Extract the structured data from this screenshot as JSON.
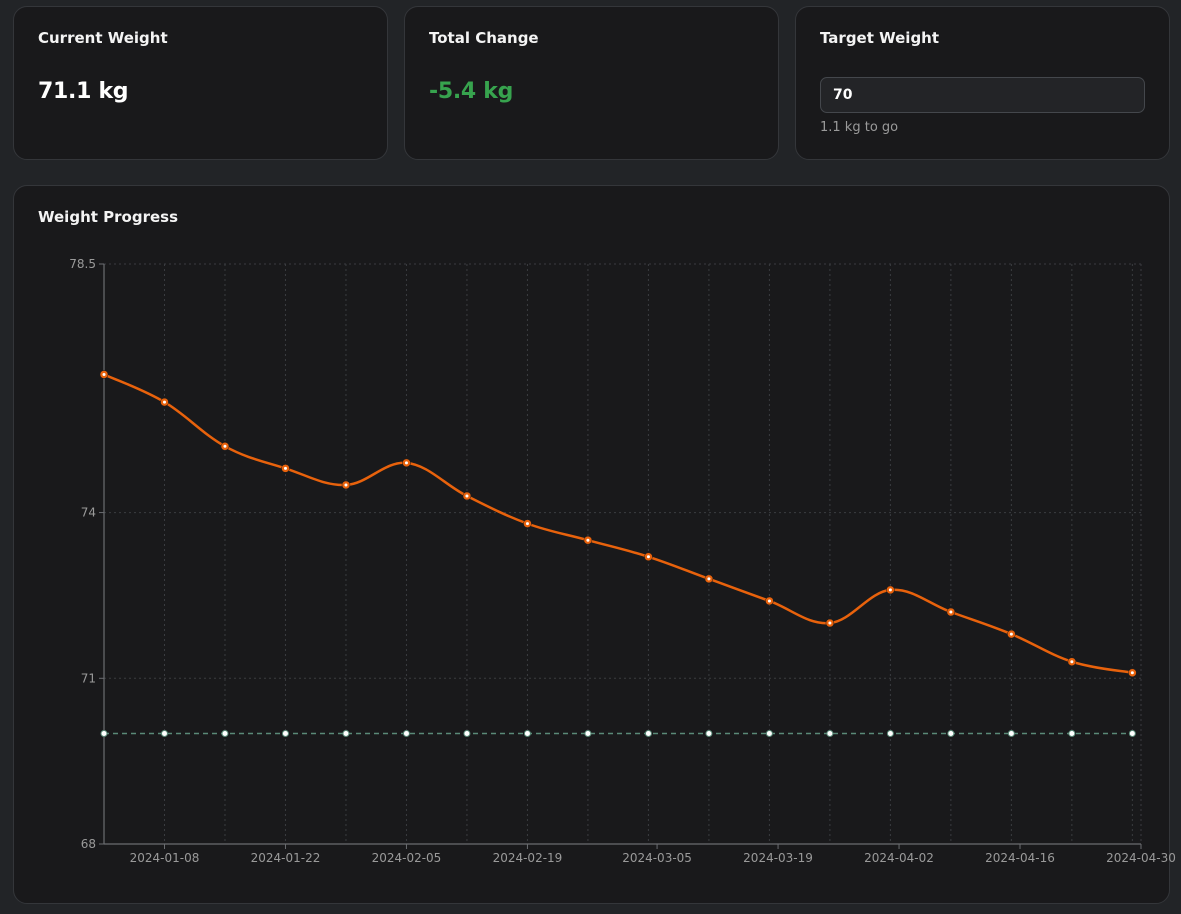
{
  "stats": {
    "current": {
      "title": "Current Weight",
      "value": "71.1 kg"
    },
    "change": {
      "title": "Total Change",
      "value": "-5.4 kg"
    },
    "target": {
      "title": "Target Weight",
      "input_value": "70",
      "hint": "1.1 kg to go"
    }
  },
  "chart_panel": {
    "title": "Weight Progress"
  },
  "colors": {
    "series": "#e8620c",
    "target_line": "#5a8a78",
    "positive_change": "#37a34e"
  },
  "chart_data": {
    "type": "line",
    "title": "Weight Progress",
    "xlabel": "",
    "ylabel": "",
    "ylim": [
      68,
      78.5
    ],
    "xlim": [
      "2024-01-01",
      "2024-04-30"
    ],
    "y_ticks": [
      "68",
      "71",
      "74",
      "78.5"
    ],
    "x_ticks": [
      "2024-01-08",
      "2024-01-22",
      "2024-02-05",
      "2024-02-19",
      "2024-03-05",
      "2024-03-19",
      "2024-04-02",
      "2024-04-16",
      "2024-04-30"
    ],
    "grid": true,
    "series": [
      {
        "x": [
          "2024-01-01",
          "2024-01-08",
          "2024-01-15",
          "2024-01-22",
          "2024-01-29",
          "2024-02-05",
          "2024-02-12",
          "2024-02-19",
          "2024-02-26",
          "2024-03-04",
          "2024-03-11",
          "2024-03-18",
          "2024-03-25",
          "2024-04-01",
          "2024-04-08",
          "2024-04-15",
          "2024-04-22",
          "2024-04-29"
        ],
        "values": [
          76.5,
          76.0,
          75.2,
          74.8,
          74.5,
          74.9,
          74.3,
          73.8,
          73.5,
          73.2,
          72.8,
          72.4,
          72.0,
          72.6,
          72.2,
          71.8,
          71.3,
          71.1
        ]
      },
      {
        "x": [
          "2024-01-01",
          "2024-01-08",
          "2024-01-15",
          "2024-01-22",
          "2024-01-29",
          "2024-02-05",
          "2024-02-12",
          "2024-02-19",
          "2024-02-26",
          "2024-03-04",
          "2024-03-11",
          "2024-03-18",
          "2024-03-25",
          "2024-04-01",
          "2024-04-08",
          "2024-04-15",
          "2024-04-22",
          "2024-04-29"
        ],
        "values": [
          70,
          70,
          70,
          70,
          70,
          70,
          70,
          70,
          70,
          70,
          70,
          70,
          70,
          70,
          70,
          70,
          70,
          70
        ]
      }
    ]
  }
}
